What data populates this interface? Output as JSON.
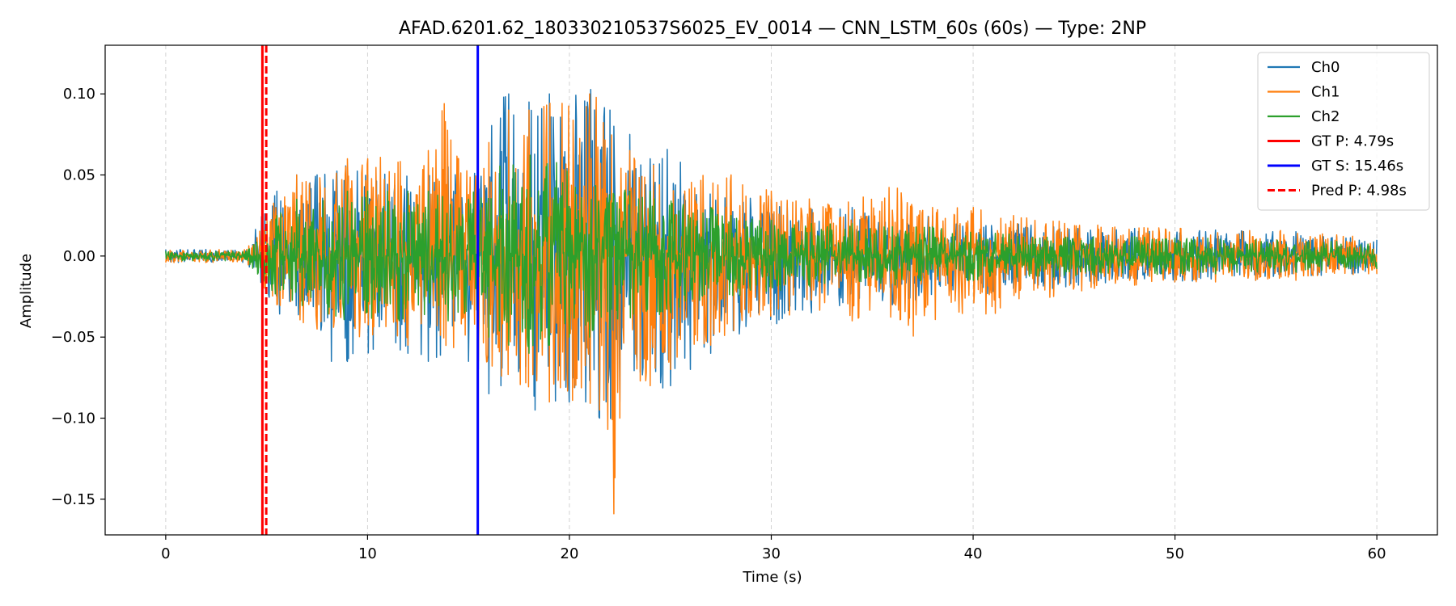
{
  "chart_data": {
    "type": "line",
    "title": "AFAD.6201.62_180330210537S6025_EV_0014 — CNN_LSTM_60s (60s) — Type: 2NP",
    "xlabel": "Time (s)",
    "ylabel": "Amplitude",
    "xlim": [
      -3,
      63
    ],
    "ylim": [
      -0.172,
      0.13
    ],
    "xticks": [
      0,
      10,
      20,
      30,
      40,
      50,
      60
    ],
    "yticks": [
      0.1,
      0.05,
      0.0,
      -0.05,
      -0.1,
      -0.15
    ],
    "ytick_labels": [
      "0.10",
      "0.05",
      "0.00",
      "−0.05",
      "−0.10",
      "−0.15"
    ],
    "grid": "x-dashed",
    "legend_position": "top-right",
    "series": [
      {
        "name": "Ch0",
        "color": "#1f77b4",
        "x": [
          0,
          2,
          4,
          4.8,
          5.5,
          6.5,
          7.5,
          8.2,
          9,
          10,
          11,
          12,
          13,
          14,
          15,
          15.5,
          16,
          16.6,
          17,
          18,
          18.3,
          19,
          20,
          20.8,
          21.5,
          22,
          22.2,
          22.5,
          23,
          24,
          25,
          26,
          27,
          28,
          30,
          32,
          34,
          36,
          38,
          40,
          42,
          44,
          46,
          48,
          50,
          52,
          54,
          56,
          58,
          60
        ],
        "y": [
          0.004,
          0.004,
          0.004,
          0.03,
          0.04,
          0.05,
          0.05,
          0.062,
          0.055,
          0.05,
          0.055,
          0.05,
          0.06,
          0.055,
          0.05,
          0.06,
          0.09,
          0.116,
          0.1,
          0.095,
          0.09,
          0.1,
          0.09,
          0.114,
          0.1,
          0.09,
          0.08,
          0.075,
          0.075,
          0.06,
          0.07,
          0.05,
          0.05,
          0.04,
          0.035,
          0.03,
          0.03,
          0.025,
          0.025,
          0.02,
          0.02,
          0.018,
          0.017,
          0.017,
          0.017,
          0.016,
          0.016,
          0.015,
          0.012,
          0.01
        ],
        "y_min": [
          -0.004,
          -0.004,
          -0.004,
          -0.02,
          -0.035,
          -0.04,
          -0.05,
          -0.065,
          -0.065,
          -0.06,
          -0.06,
          -0.06,
          -0.065,
          -0.06,
          -0.065,
          -0.07,
          -0.085,
          -0.08,
          -0.09,
          -0.113,
          -0.095,
          -0.09,
          -0.09,
          -0.09,
          -0.1,
          -0.123,
          -0.11,
          -0.09,
          -0.08,
          -0.09,
          -0.08,
          -0.07,
          -0.06,
          -0.05,
          -0.045,
          -0.035,
          -0.03,
          -0.03,
          -0.025,
          -0.025,
          -0.02,
          -0.02,
          -0.018,
          -0.016,
          -0.016,
          -0.015,
          -0.015,
          -0.013,
          -0.012,
          -0.01
        ]
      },
      {
        "name": "Ch1",
        "color": "#ff7f0e",
        "x": [
          0,
          2,
          4,
          4.8,
          5.5,
          6.5,
          7.5,
          9,
          10,
          11,
          12,
          13,
          13.8,
          14.5,
          15.5,
          16,
          17,
          18,
          19,
          20,
          21,
          21.5,
          22,
          22.2,
          22.5,
          23,
          24,
          25,
          26,
          27,
          28,
          30,
          32,
          34,
          36,
          37,
          38,
          40,
          41,
          42,
          44,
          46,
          48,
          50,
          52,
          54,
          56,
          58,
          60
        ],
        "y": [
          0.004,
          0.004,
          0.004,
          0.02,
          0.04,
          0.05,
          0.05,
          0.06,
          0.06,
          0.065,
          0.06,
          0.065,
          0.094,
          0.06,
          0.06,
          0.07,
          0.09,
          0.09,
          0.1,
          0.1,
          0.1,
          0.104,
          0.08,
          0.075,
          0.07,
          0.065,
          0.06,
          0.05,
          0.05,
          0.05,
          0.05,
          0.04,
          0.035,
          0.035,
          0.046,
          0.034,
          0.03,
          0.03,
          0.027,
          0.025,
          0.022,
          0.02,
          0.018,
          0.018,
          0.017,
          0.017,
          0.015,
          0.013,
          0.011
        ],
        "y_min": [
          -0.004,
          -0.004,
          -0.004,
          -0.02,
          -0.03,
          -0.04,
          -0.045,
          -0.05,
          -0.055,
          -0.05,
          -0.055,
          -0.055,
          -0.06,
          -0.06,
          -0.065,
          -0.08,
          -0.08,
          -0.095,
          -0.09,
          -0.09,
          -0.095,
          -0.095,
          -0.11,
          -0.159,
          -0.1,
          -0.085,
          -0.08,
          -0.07,
          -0.06,
          -0.055,
          -0.05,
          -0.04,
          -0.035,
          -0.04,
          -0.045,
          -0.05,
          -0.04,
          -0.035,
          -0.037,
          -0.03,
          -0.025,
          -0.02,
          -0.018,
          -0.016,
          -0.016,
          -0.015,
          -0.015,
          -0.013,
          -0.011
        ]
      },
      {
        "name": "Ch2",
        "color": "#2ca02c",
        "x": [
          0,
          2,
          4,
          4.8,
          5.5,
          6.5,
          7.5,
          9,
          10,
          11,
          12,
          13,
          14,
          15,
          15.5,
          16,
          17,
          18,
          19,
          20,
          21,
          22,
          23,
          24,
          25,
          26,
          27,
          28,
          30,
          32,
          34,
          36,
          38,
          40,
          42,
          44,
          46,
          48,
          50,
          52,
          54,
          56,
          58,
          60
        ],
        "y": [
          0.003,
          0.003,
          0.003,
          0.015,
          0.025,
          0.035,
          0.035,
          0.04,
          0.04,
          0.04,
          0.04,
          0.04,
          0.04,
          0.035,
          0.045,
          0.05,
          0.06,
          0.065,
          0.06,
          0.055,
          0.05,
          0.045,
          0.04,
          0.04,
          0.035,
          0.03,
          0.03,
          0.025,
          0.022,
          0.02,
          0.02,
          0.018,
          0.018,
          0.015,
          0.014,
          0.013,
          0.012,
          0.012,
          0.011,
          0.011,
          0.01,
          0.01,
          0.009,
          0.008
        ],
        "y_min": [
          -0.003,
          -0.003,
          -0.003,
          -0.015,
          -0.025,
          -0.03,
          -0.035,
          -0.04,
          -0.04,
          -0.04,
          -0.04,
          -0.04,
          -0.04,
          -0.04,
          -0.045,
          -0.05,
          -0.055,
          -0.06,
          -0.055,
          -0.05,
          -0.05,
          -0.045,
          -0.04,
          -0.04,
          -0.035,
          -0.03,
          -0.028,
          -0.025,
          -0.022,
          -0.02,
          -0.02,
          -0.018,
          -0.017,
          -0.015,
          -0.014,
          -0.013,
          -0.012,
          -0.012,
          -0.011,
          -0.011,
          -0.01,
          -0.01,
          -0.009,
          -0.008
        ]
      }
    ],
    "markers": [
      {
        "name": "GT P: 4.79s",
        "x": 4.79,
        "color": "#ff0000",
        "style": "solid"
      },
      {
        "name": "GT S: 15.46s",
        "x": 15.46,
        "color": "#0000ff",
        "style": "solid"
      },
      {
        "name": "Pred P: 4.98s",
        "x": 4.98,
        "color": "#ff0000",
        "style": "dashed"
      }
    ]
  }
}
